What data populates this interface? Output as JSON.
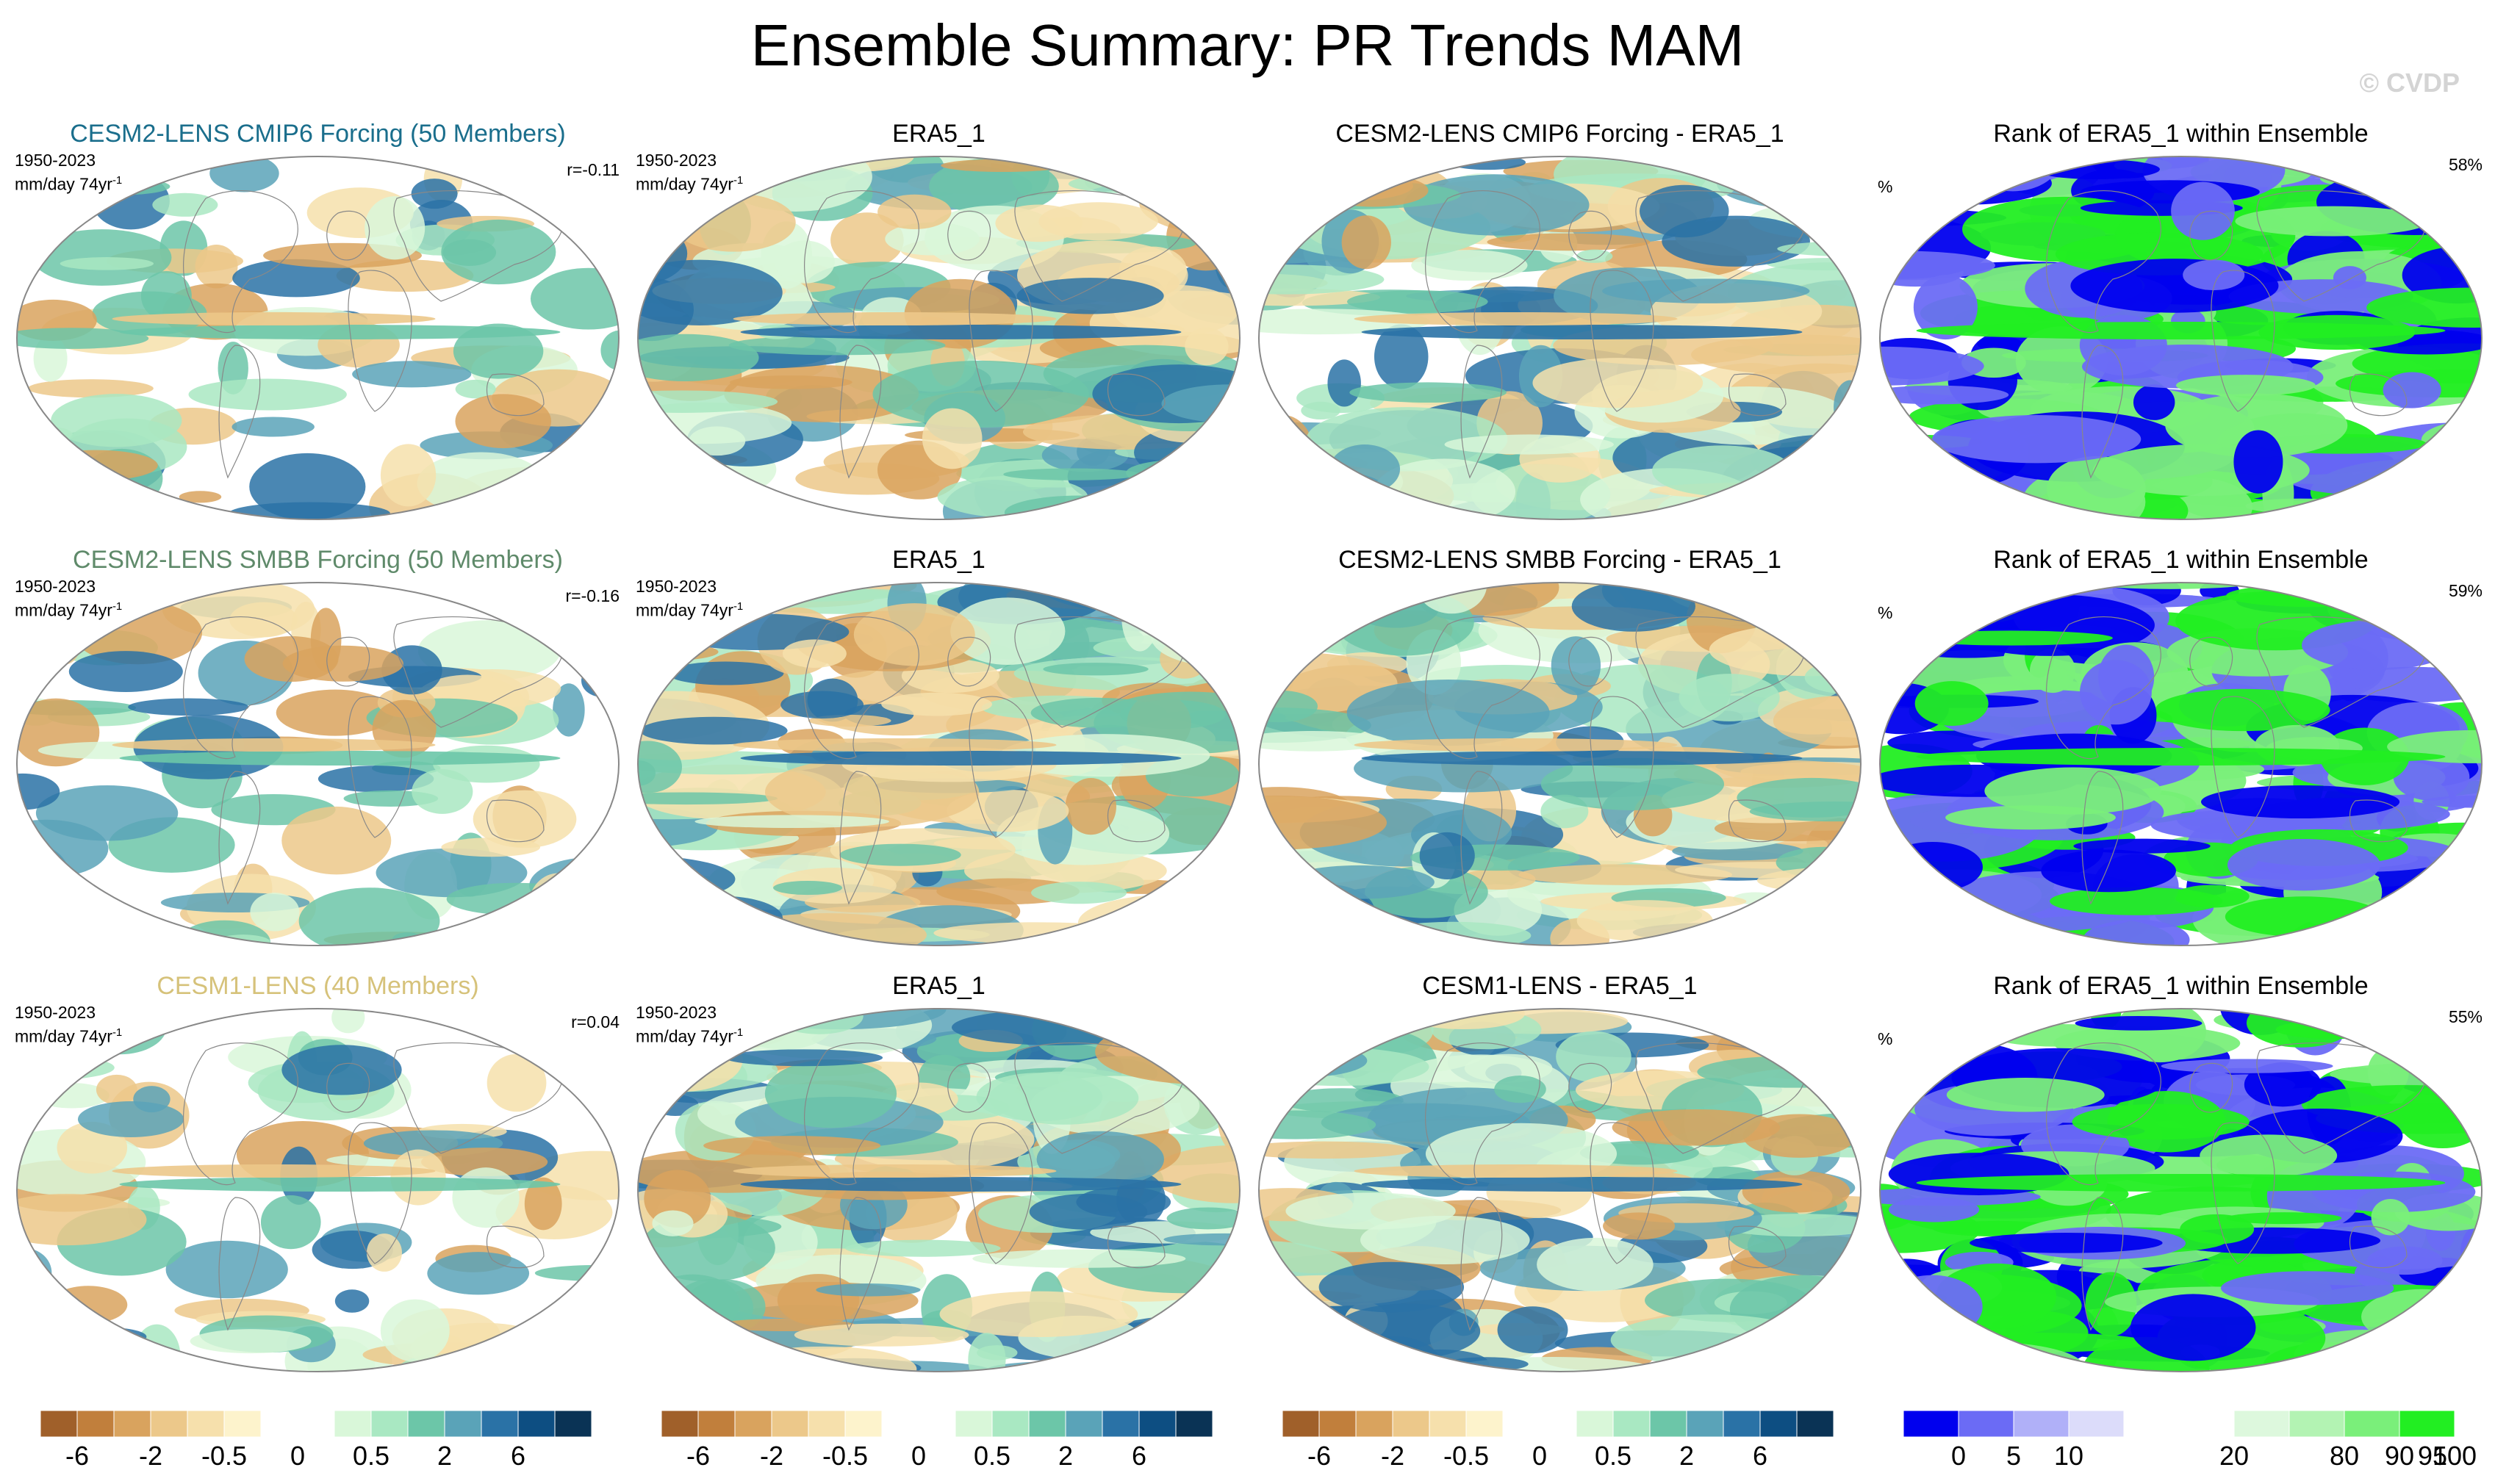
{
  "title": "Ensemble Summary: PR Trends MAM",
  "watermark": "© CVDP",
  "rows": [
    {
      "model": {
        "title": "CESM2-LENS CMIP6 Forcing (50 Members)",
        "title_color": "#1a6e8c",
        "period": "1950-2023",
        "units": "mm/day 74yr",
        "units_exp": "-1",
        "corr": "r=-0.11"
      },
      "obs": {
        "title": "ERA5_1",
        "period": "1950-2023",
        "units": "mm/day 74yr",
        "units_exp": "-1"
      },
      "diff": {
        "title": "CESM2-LENS CMIP6 Forcing - ERA5_1"
      },
      "rank": {
        "title": "Rank of ERA5_1 within Ensemble",
        "unit": "%",
        "pct": "58%"
      }
    },
    {
      "model": {
        "title": "CESM2-LENS SMBB Forcing (50 Members)",
        "title_color": "#5f8a6a",
        "period": "1950-2023",
        "units": "mm/day 74yr",
        "units_exp": "-1",
        "corr": "r=-0.16"
      },
      "obs": {
        "title": "ERA5_1",
        "period": "1950-2023",
        "units": "mm/day 74yr",
        "units_exp": "-1"
      },
      "diff": {
        "title": "CESM2-LENS SMBB Forcing - ERA5_1"
      },
      "rank": {
        "title": "Rank of ERA5_1 within Ensemble",
        "unit": "%",
        "pct": "59%"
      }
    },
    {
      "model": {
        "title": "CESM1-LENS (40 Members)",
        "title_color": "#d6c27a",
        "period": "1950-2023",
        "units": "mm/day 74yr",
        "units_exp": "-1",
        "corr": "r=0.04"
      },
      "obs": {
        "title": "ERA5_1",
        "period": "1950-2023",
        "units": "mm/day 74yr",
        "units_exp": "-1"
      },
      "diff": {
        "title": "CESM1-LENS - ERA5_1"
      },
      "rank": {
        "title": "Rank of ERA5_1 within Ensemble",
        "unit": "%",
        "pct": "55%"
      }
    }
  ],
  "colorbars": {
    "trend": {
      "colors": [
        "#a0602a",
        "#c17f3c",
        "#d9a35e",
        "#ecc88a",
        "#f6e0ac",
        "#fdf3cc",
        "#ffffff",
        "#ffffff",
        "#d9f7d9",
        "#a9e8c2",
        "#6cc6a8",
        "#5aa3b8",
        "#2a72a6",
        "#0d4e82",
        "#0a3355"
      ],
      "labels": [
        "-6",
        "-2",
        "-0.5",
        "0",
        "0.5",
        "2",
        "6"
      ]
    },
    "rank": {
      "colors": [
        "#0000ee",
        "#6b6bf5",
        "#b0b0f8",
        "#dcdcfa",
        "#ffffff",
        "#ffffff",
        "#ddf8dd",
        "#b3f3b3",
        "#7aef7a",
        "#22ee22"
      ],
      "labels": [
        "0",
        "5",
        "10",
        "20",
        "80",
        "90",
        "95",
        "100"
      ]
    }
  },
  "palettes": {
    "trend_fill": [
      "#f6e0ac",
      "#ecc88a",
      "#d9a35e",
      "#d9f7d9",
      "#a9e8c2",
      "#6cc6a8",
      "#5aa3b8",
      "#2a72a6"
    ],
    "rank_fill": [
      "#0000ee",
      "#6b6bf5",
      "#22ee22",
      "#7aef7a"
    ]
  }
}
